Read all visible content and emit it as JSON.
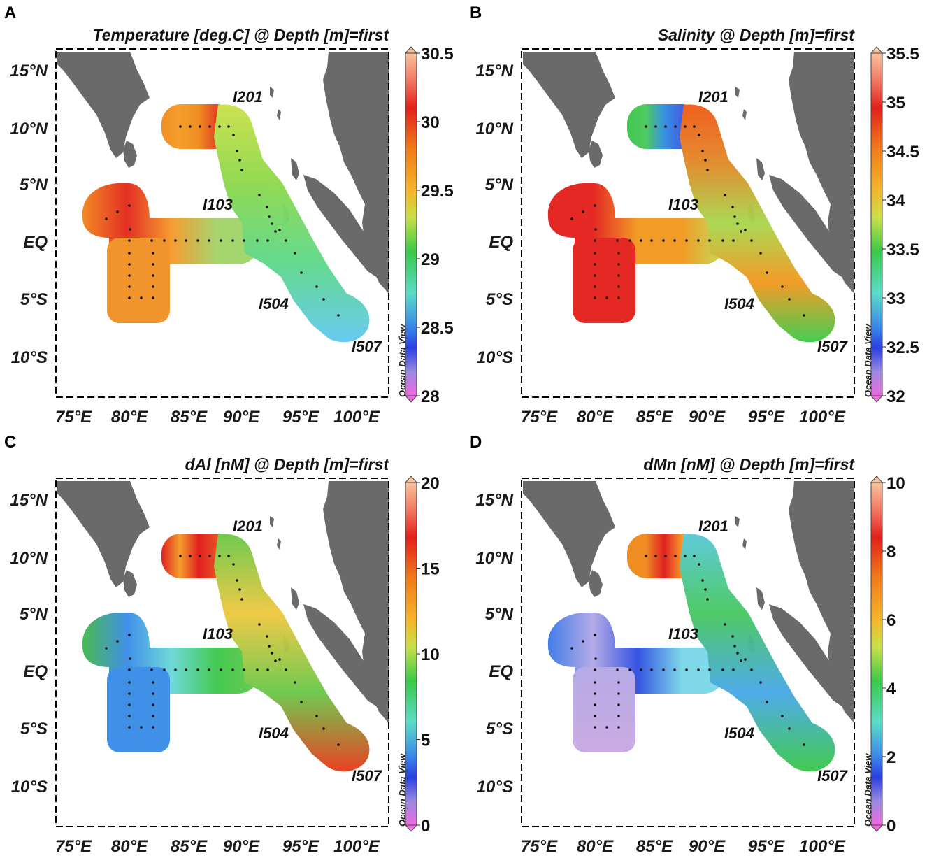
{
  "figure": {
    "panels": [
      {
        "letter": "A",
        "title": "Temperature [deg.C] @ Depth [m]=first",
        "colorbar_ticks": [
          "30.5",
          "30",
          "29.5",
          "29",
          "28.5",
          "28"
        ],
        "segment_colors": {
          "north": [
            "#f08a1c",
            "#f59a24",
            "#f08a1c",
            "#e23a1a",
            "#e01818"
          ],
          "central": [
            "#f2851c",
            "#e2281c",
            "#f59a2a",
            "#a3d36a",
            "#9fd66a"
          ],
          "east": [
            "#c9e24a",
            "#8ed84c",
            "#5ed88a",
            "#62c8f0"
          ],
          "south": [
            "#f09024",
            "#f09024"
          ]
        }
      },
      {
        "letter": "B",
        "title": "Salinity @ Depth [m]=first",
        "colorbar_ticks": [
          "35.5",
          "35",
          "34.5",
          "34",
          "33.5",
          "33",
          "32.5",
          "32"
        ],
        "segment_colors": {
          "north": [
            "#3cc64a",
            "#48c85a",
            "#2f8ee0",
            "#3d5ae0",
            "#8ad8e0"
          ],
          "central": [
            "#e3201c",
            "#e3201c",
            "#f2981f",
            "#f2981f",
            "#bddf5a"
          ],
          "east": [
            "#f05a18",
            "#e08a28",
            "#a8d84e",
            "#f2981f",
            "#3dcc4a"
          ],
          "south": [
            "#e3201c",
            "#e3201c"
          ]
        }
      },
      {
        "letter": "C",
        "title": "dAl [nM] @ Depth [m]=first",
        "colorbar_ticks": [
          "20",
          "15",
          "10",
          "5",
          "0"
        ],
        "segment_colors": {
          "north": [
            "#e01818",
            "#f59a24",
            "#e01818",
            "#e84a1c",
            "#f08a1c"
          ],
          "central": [
            "#41b84a",
            "#3a8ce8",
            "#6ad8d8",
            "#3cc84a",
            "#6ac84a"
          ],
          "east": [
            "#6ac84a",
            "#f0c840",
            "#6ac84a",
            "#e83a1a"
          ],
          "south": [
            "#3a8ce8",
            "#3a8ce8"
          ]
        }
      },
      {
        "letter": "D",
        "title": "dMn [nM] @ Depth [m]=first",
        "colorbar_ticks": [
          "10",
          "8",
          "6",
          "4",
          "2",
          "0"
        ],
        "segment_colors": {
          "north": [
            "#f08a1c",
            "#f08a1c",
            "#e01818",
            "#f59a24",
            "#c9e24a"
          ],
          "central": [
            "#3a78e8",
            "#b3a8e6",
            "#2e4ee0",
            "#7ad8e8",
            "#7ad8e8"
          ],
          "east": [
            "#5ac8d8",
            "#48c860",
            "#48a8e8",
            "#3cc84a"
          ],
          "south": [
            "#b3a8e6",
            "#c8a8e0"
          ]
        }
      }
    ],
    "y_axis_ticks": [
      "15°N",
      "10°N",
      "5°N",
      "EQ",
      "5°S",
      "10°S"
    ],
    "x_axis_ticks": [
      "75°E",
      "80°E",
      "85°E",
      "90°E",
      "95°E",
      "100°E"
    ],
    "station_labels": [
      "I201",
      "I103",
      "I504",
      "I507"
    ],
    "watermark": "Ocean Data View",
    "colors": {
      "land": "#6a6a6a",
      "frame": "#000000",
      "station": "#111111"
    }
  }
}
